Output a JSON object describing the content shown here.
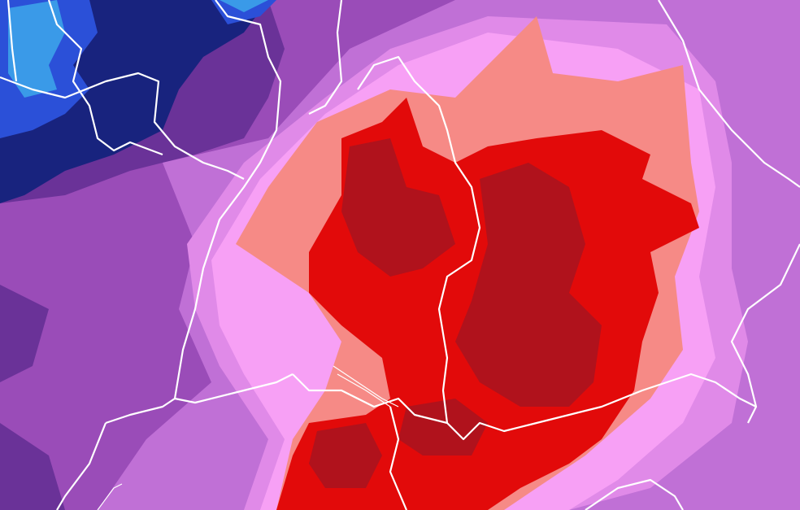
{
  "map": {
    "type": "weather-field-heatmap",
    "palette": {
      "deep_blue": "#18237e",
      "blue": "#2b50d8",
      "light_blue": "#3a9ae8",
      "dark_purple": "#6a3298",
      "purple": "#9a4cb8",
      "violet": "#c070d6",
      "light_violet": "#e08ae8",
      "pink": "#f7a0f5",
      "salmon": "#f68a86",
      "red": "#e20a0a",
      "dark_red": "#b0121c",
      "border": "#ffffff"
    }
  }
}
